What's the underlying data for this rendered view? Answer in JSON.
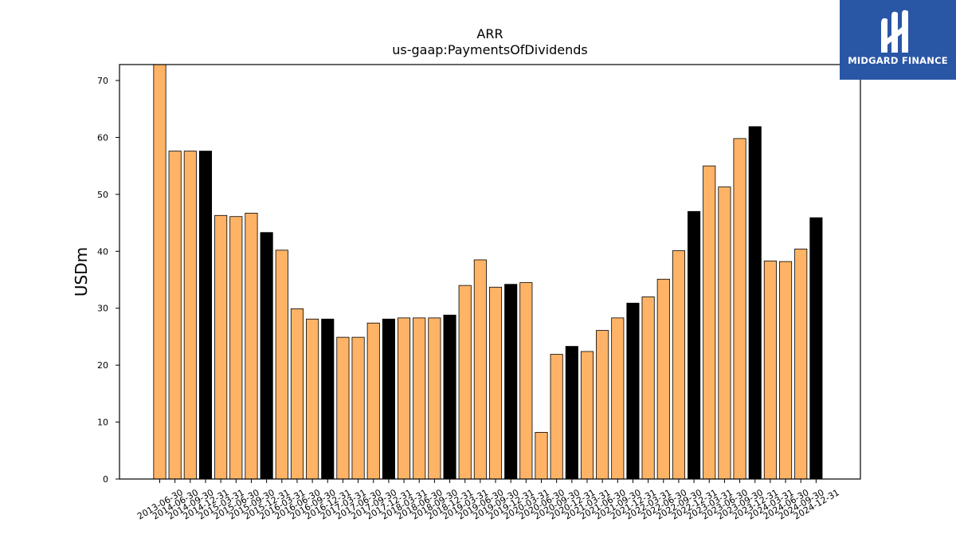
{
  "logo": {
    "text": "MIDGARD FINANCE",
    "icon": "midgard-logo-icon",
    "color": "#2a56a6"
  },
  "colors": {
    "regular": "#ffb366",
    "year_end": "#000000",
    "edge": "#000000"
  },
  "chart_data": {
    "type": "bar",
    "title": "ARR",
    "subtitle": "us-gaap:PaymentsOfDividends",
    "xlabel": "",
    "ylabel": "USDm",
    "ylim": [
      0,
      72.8
    ],
    "yticks": [
      0,
      10,
      20,
      30,
      40,
      50,
      60,
      70
    ],
    "grid": false,
    "categories": [
      "2013-06-30",
      "2014-06-30",
      "2014-09-30",
      "2014-12-31",
      "2015-03-31",
      "2015-06-30",
      "2015-09-30",
      "2015-12-31",
      "2016-03-31",
      "2016-06-30",
      "2016-09-30",
      "2016-12-31",
      "2017-03-31",
      "2017-06-30",
      "2017-09-30",
      "2017-12-31",
      "2018-03-31",
      "2018-06-30",
      "2018-09-30",
      "2018-12-31",
      "2019-03-31",
      "2019-06-30",
      "2019-09-30",
      "2019-12-31",
      "2020-03-31",
      "2020-06-30",
      "2020-09-30",
      "2020-12-31",
      "2021-03-31",
      "2021-06-30",
      "2021-09-30",
      "2021-12-31",
      "2022-03-31",
      "2022-06-30",
      "2022-09-30",
      "2022-12-31",
      "2023-03-31",
      "2023-06-30",
      "2023-09-30",
      "2023-12-31",
      "2024-03-31",
      "2024-06-30",
      "2024-09-30",
      "2024-12-31"
    ],
    "values": [
      72.8,
      57.6,
      57.6,
      57.6,
      46.3,
      46.1,
      46.7,
      43.3,
      40.2,
      29.9,
      28.1,
      28.1,
      24.9,
      24.9,
      27.4,
      28.1,
      28.3,
      28.3,
      28.3,
      28.8,
      34.0,
      38.5,
      33.7,
      34.2,
      34.5,
      8.2,
      21.9,
      23.3,
      22.4,
      26.1,
      28.3,
      30.9,
      32.0,
      35.1,
      40.1,
      47.0,
      55.0,
      51.3,
      59.8,
      61.9,
      38.3,
      38.2,
      40.4,
      45.9
    ],
    "year_end": [
      false,
      false,
      false,
      true,
      false,
      false,
      false,
      true,
      false,
      false,
      false,
      true,
      false,
      false,
      false,
      true,
      false,
      false,
      false,
      true,
      false,
      false,
      false,
      true,
      false,
      false,
      false,
      true,
      false,
      false,
      false,
      true,
      false,
      false,
      false,
      true,
      false,
      false,
      false,
      true,
      false,
      false,
      false,
      true
    ]
  }
}
